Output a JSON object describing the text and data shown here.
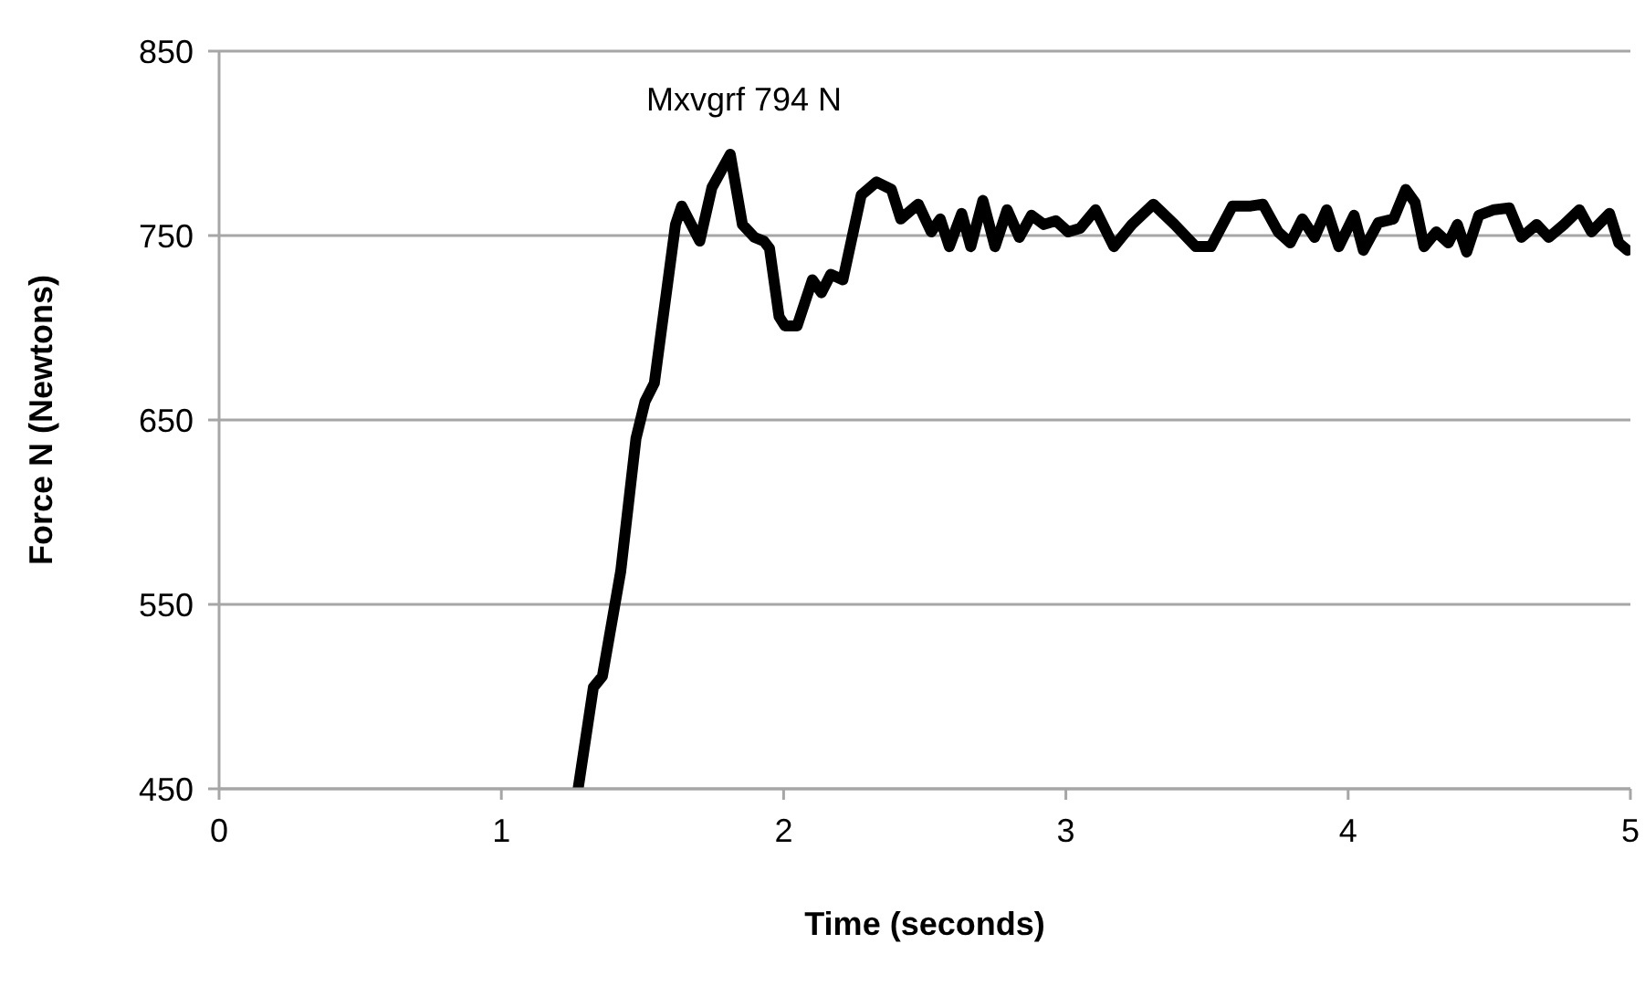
{
  "chart_data": {
    "type": "line",
    "xlabel": "Time (seconds)",
    "ylabel": "Force N (Newtons)",
    "xlim": [
      0,
      5
    ],
    "xticks": [
      0,
      1,
      2,
      3,
      4,
      5
    ],
    "ylim": [
      450,
      850
    ],
    "yticks": [
      450,
      550,
      650,
      750,
      850
    ],
    "grid": "y",
    "marker": "none",
    "line_style": "solid",
    "annotations": [
      {
        "text": "Mxvgrf 794 N",
        "x": 1.811,
        "y": 794
      }
    ],
    "series": [
      {
        "color": "#000000",
        "x": [
          1.272,
          1.326,
          1.358,
          1.423,
          1.477,
          1.509,
          1.542,
          1.617,
          1.639,
          1.703,
          1.746,
          1.811,
          1.854,
          1.897,
          1.93,
          1.95,
          1.984,
          2.005,
          2.048,
          2.102,
          2.134,
          2.167,
          2.21,
          2.275,
          2.329,
          2.382,
          2.415,
          2.469,
          2.477,
          2.523,
          2.555,
          2.587,
          2.631,
          2.663,
          2.706,
          2.749,
          2.792,
          2.835,
          2.878,
          2.922,
          2.965,
          3.008,
          3.051,
          3.105,
          3.17,
          3.234,
          3.31,
          3.385,
          3.46,
          3.514,
          3.59,
          3.655,
          3.698,
          3.752,
          3.795,
          3.838,
          3.881,
          3.924,
          3.967,
          4.021,
          4.054,
          4.107,
          4.161,
          4.204,
          4.237,
          4.269,
          4.312,
          4.355,
          4.387,
          4.42,
          4.463,
          4.517,
          4.571,
          4.614,
          4.668,
          4.711,
          4.765,
          4.819,
          4.862,
          4.926,
          4.959,
          4.99
        ],
        "values": [
          450,
          505,
          511,
          568,
          640,
          660,
          670,
          756,
          766,
          747,
          776,
          794,
          756,
          749,
          747,
          743,
          706,
          701,
          701,
          726,
          719,
          729,
          726,
          772,
          779,
          775,
          759,
          766,
          767,
          752,
          759,
          744,
          762,
          744,
          769,
          744,
          764,
          749,
          761,
          756,
          758,
          752,
          754,
          764,
          744,
          756,
          767,
          756,
          744,
          744,
          766,
          766,
          767,
          752,
          746,
          759,
          749,
          764,
          744,
          761,
          742,
          757,
          759,
          775,
          768,
          744,
          752,
          746,
          756,
          741,
          761,
          764,
          765,
          749,
          756,
          749,
          756,
          764,
          752,
          762,
          746,
          742
        ]
      }
    ]
  }
}
